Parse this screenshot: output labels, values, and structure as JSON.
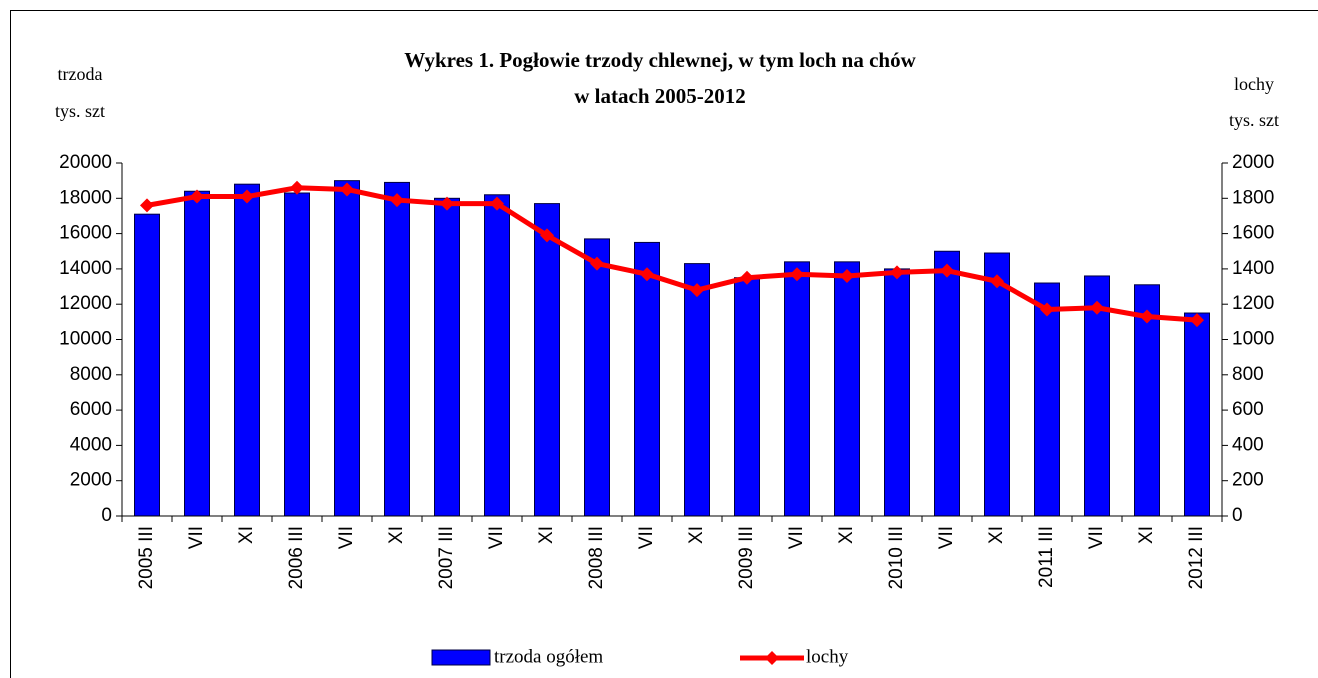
{
  "chart_data": {
    "type": "bar_line",
    "title": [
      "Wykres 1. Pogłowie trzody chlewnej, w tym loch na chów",
      "w latach 2005-2012"
    ],
    "ylabel": [
      "trzoda",
      "tys. szt"
    ],
    "y2label": [
      "lochy",
      "tys. szt"
    ],
    "categories": [
      "2005 III",
      "VII",
      "XI",
      "2006 III",
      "VII",
      "XI",
      "2007 III",
      "VII",
      "XI",
      "2008 III",
      "VII",
      "XI",
      "2009 III",
      "VII",
      "XI",
      "2010 III",
      "VII",
      "XI",
      "2011 III",
      "VII",
      "XI",
      "2012 III"
    ],
    "series": [
      {
        "name": "trzoda ogółem",
        "type": "bar",
        "color": "#0000ff",
        "values": [
          17100,
          18400,
          18800,
          18300,
          19000,
          18900,
          18000,
          18200,
          17700,
          15700,
          15500,
          14300,
          13500,
          14400,
          14400,
          14000,
          15000,
          14900,
          13200,
          13600,
          13100,
          11500
        ]
      },
      {
        "name": "lochy",
        "type": "line",
        "axis": "y2",
        "color": "#ff0000",
        "values": [
          1760,
          1810,
          1810,
          1860,
          1850,
          1790,
          1770,
          1770,
          1590,
          1430,
          1370,
          1280,
          1350,
          1370,
          1360,
          1380,
          1390,
          1330,
          1170,
          1180,
          1130,
          1110
        ]
      }
    ],
    "ylim": [
      0,
      20000
    ],
    "yticks": [
      0,
      2000,
      4000,
      6000,
      8000,
      10000,
      12000,
      14000,
      16000,
      18000,
      20000
    ],
    "y2lim": [
      0,
      2000
    ],
    "y2ticks": [
      0,
      200,
      400,
      600,
      800,
      1000,
      1200,
      1400,
      1600,
      1800,
      2000
    ]
  }
}
